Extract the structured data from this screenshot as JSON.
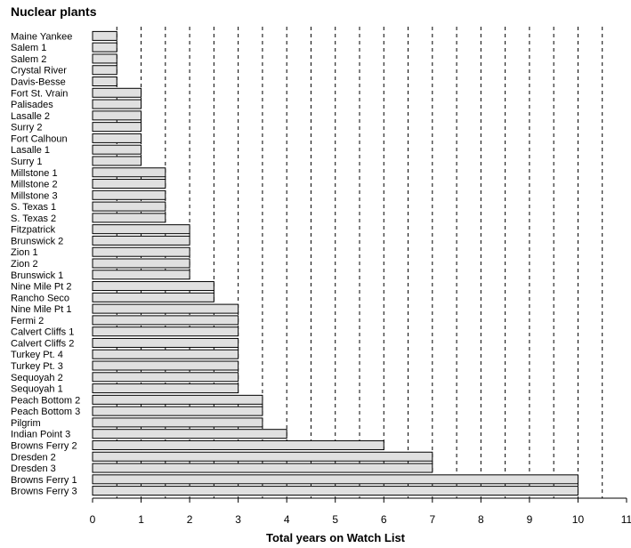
{
  "chart_data": {
    "type": "bar",
    "orientation": "horizontal",
    "title": "Nuclear plants",
    "xlabel": "Total years on Watch List",
    "ylabel": "",
    "xlim": [
      0,
      11
    ],
    "xticks": [
      "0",
      "1",
      "2",
      "3",
      "4",
      "5",
      "6",
      "7",
      "8",
      "9",
      "10",
      "11"
    ],
    "grid": "vertical dashed lines every 0.5",
    "categories": [
      "Maine Yankee",
      "Salem 1",
      "Salem 2",
      "Crystal River",
      "Davis-Besse",
      "Fort St. Vrain",
      "Palisades",
      "Lasalle 2",
      "Surry 2",
      "Fort Calhoun",
      "Lasalle 1",
      "Surry 1",
      "Millstone 1",
      "Millstone 2",
      "Millstone 3",
      "S. Texas 1",
      "S. Texas 2",
      "Fitzpatrick",
      "Brunswick 2",
      "Zion 1",
      "Zion 2",
      "Brunswick 1",
      "Nine Mile Pt 2",
      "Rancho Seco",
      "Nine Mile Pt 1",
      "Fermi 2",
      "Calvert Cliffs 1",
      "Calvert Cliffs 2",
      "Turkey Pt. 4",
      "Turkey Pt. 3",
      "Sequoyah 2",
      "Sequoyah 1",
      "Peach Bottom 2",
      "Peach Bottom 3",
      "Pilgrim",
      "Indian Point 3",
      "Browns Ferry 2",
      "Dresden 2",
      "Dresden 3",
      "Browns Ferry 1",
      "Browns Ferry 3"
    ],
    "values": [
      0.5,
      0.5,
      0.5,
      0.5,
      0.5,
      1,
      1,
      1,
      1,
      1,
      1,
      1,
      1.5,
      1.5,
      1.5,
      1.5,
      1.5,
      2,
      2,
      2,
      2,
      2,
      2.5,
      2.5,
      3,
      3,
      3,
      3,
      3,
      3,
      3,
      3,
      3.5,
      3.5,
      3.5,
      4,
      6,
      7,
      7,
      10,
      10
    ],
    "colors": {
      "bar_fill": "#e0e0e0",
      "bar_stroke": "#000000",
      "grid": "#000000"
    }
  }
}
